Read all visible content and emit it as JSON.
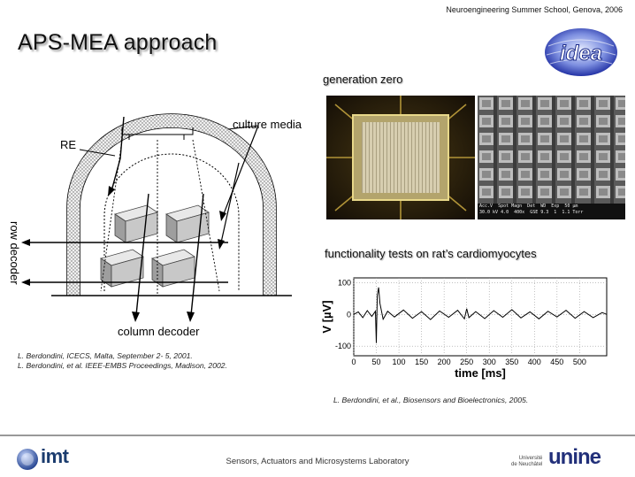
{
  "header": {
    "event": "Neuroengineering Summer School, Genova, 2006"
  },
  "slide": {
    "title": "APS-MEA approach",
    "diagram_labels": {
      "culture_media": "culture media",
      "re": "RE",
      "row_decoder": "row decoder",
      "column_decoder": "column decoder"
    },
    "captions": {
      "generation_zero": "generation zero",
      "functionality": "functionality tests on rat’s cardiomyocytes"
    },
    "references_left": [
      "L. Berdondini, ICECS, Malta, September 2- 5, 2001.",
      "L. Berdondini, et al. IEEE-EMBS Proceedings, Madison, 2002."
    ],
    "reference_right": "L. Berdondini, et al., Biosensors and Bioelectronics, 2005.",
    "sem_text": "Acc.V  Spot Magn  Det  WD  Exp  50 µm\n30.0 kV 4.0  400x  GSE 9.3  1  1.1 Torr"
  },
  "logos": {
    "idea_text": "idea",
    "imt_text": "imt",
    "unine_small": "Université\nde Neuchâtel",
    "unine_big": "unine"
  },
  "footer": {
    "lab": "Sensors, Actuators and Microsystems Laboratory"
  },
  "chart_data": {
    "type": "line",
    "xlabel": "time [ms]",
    "ylabel": "V [µV]",
    "xlim": [
      0,
      560
    ],
    "ylim": [
      -130,
      115
    ],
    "x_ticks": [
      0,
      50,
      100,
      150,
      200,
      250,
      300,
      350,
      400,
      450,
      500
    ],
    "y_ticks": [
      100,
      0,
      -100
    ],
    "x_tick_labels": [
      "0",
      "50",
      "100",
      "150",
      "200",
      "250",
      "300",
      "350",
      "400",
      "450",
      "500"
    ],
    "y_tick_labels": [
      "100",
      "0",
      "-100"
    ],
    "grid": true,
    "series": [
      {
        "points": [
          [
            0,
            0
          ],
          [
            10,
            8
          ],
          [
            20,
            -10
          ],
          [
            30,
            12
          ],
          [
            40,
            -6
          ],
          [
            48,
            10
          ],
          [
            50,
            -90
          ],
          [
            52,
            60
          ],
          [
            55,
            85
          ],
          [
            58,
            35
          ],
          [
            65,
            -15
          ],
          [
            75,
            10
          ],
          [
            90,
            -8
          ],
          [
            110,
            14
          ],
          [
            130,
            -12
          ],
          [
            150,
            9
          ],
          [
            170,
            -16
          ],
          [
            190,
            11
          ],
          [
            210,
            -9
          ],
          [
            230,
            13
          ],
          [
            245,
            -14
          ],
          [
            250,
            18
          ],
          [
            255,
            -10
          ],
          [
            270,
            9
          ],
          [
            290,
            -13
          ],
          [
            310,
            12
          ],
          [
            330,
            -9
          ],
          [
            350,
            15
          ],
          [
            370,
            -11
          ],
          [
            390,
            8
          ],
          [
            410,
            -14
          ],
          [
            430,
            10
          ],
          [
            450,
            -8
          ],
          [
            470,
            13
          ],
          [
            490,
            -12
          ],
          [
            510,
            9
          ],
          [
            530,
            -10
          ],
          [
            550,
            6
          ],
          [
            560,
            0
          ]
        ]
      }
    ]
  }
}
